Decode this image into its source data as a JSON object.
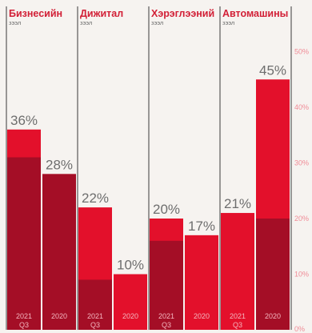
{
  "colors": {
    "bar_main": "#e3102b",
    "bar_dark": "#a40e26",
    "panel_title": "#d21f36",
    "subtitle": "#6b6b6b",
    "value_label": "#6e6e6e",
    "ytick": "#f08b96",
    "category_label": "#f4b6bf",
    "divider": "#3a3a3a",
    "background": "#f6f3f0"
  },
  "chart_data": {
    "type": "bar",
    "ylim": [
      0,
      50
    ],
    "yticks": [
      "50%",
      "40%",
      "30%",
      "20%",
      "10%",
      "0%"
    ],
    "categories": [
      {
        "line1": "2021",
        "line2": "Q3"
      },
      {
        "line1": "2020",
        "line2": ""
      }
    ],
    "panels": [
      {
        "title": "Бизнесийн",
        "subtitle": "зээл",
        "bars": [
          {
            "value": 36,
            "label": "36%",
            "dark_portion": 31
          },
          {
            "value": 28,
            "label": "28%",
            "dark_portion": 28
          }
        ]
      },
      {
        "title": "Дижитал",
        "subtitle": "зээл",
        "bars": [
          {
            "value": 22,
            "label": "22%",
            "dark_portion": 9
          },
          {
            "value": 10,
            "label": "10%",
            "dark_portion": 0
          }
        ]
      },
      {
        "title": "Хэрэглээний",
        "subtitle": "зээл",
        "bars": [
          {
            "value": 20,
            "label": "20%",
            "dark_portion": 16
          },
          {
            "value": 17,
            "label": "17%",
            "dark_portion": 0
          }
        ]
      },
      {
        "title": "Автомашины",
        "subtitle": "зээл",
        "bars": [
          {
            "value": 21,
            "label": "21%",
            "dark_portion": 0
          },
          {
            "value": 45,
            "label": "45%",
            "dark_portion": 20
          }
        ]
      }
    ]
  }
}
